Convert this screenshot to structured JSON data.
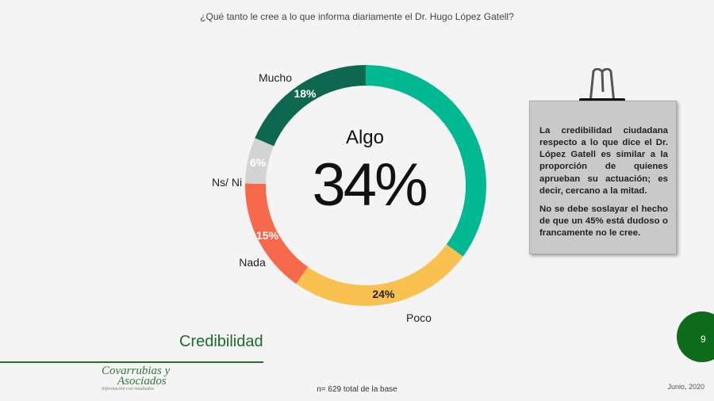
{
  "question": "¿Qué tanto le cree a lo que informa diariamente el Dr. Hugo López Gatell?",
  "chart_data": {
    "type": "pie",
    "categories": [
      "Algo",
      "Poco",
      "Nada",
      "Ns/ Ni",
      "Mucho"
    ],
    "values": [
      34,
      24,
      15,
      6,
      18
    ],
    "value_labels": [
      "34%",
      "24%",
      "15%",
      "6%",
      "18%"
    ],
    "colors": [
      "#00b891",
      "#f9c150",
      "#f6694a",
      "#d3d3d3",
      "#0e6850"
    ],
    "center_label": "Algo",
    "center_value": "34%"
  },
  "note": {
    "paragraph1": "La credibilidad ciudadana respecto a lo que dice el Dr. López Gatell es similar a la proporción de quienes aprueban su actuación; es decir, cercano a la mitad.",
    "paragraph2": "No se debe soslayar el hecho de que un 45% está dudoso o francamente no le cree."
  },
  "section_title": "Credibilidad",
  "logo": {
    "line1": "Covarrubias y",
    "line2": "Asociados",
    "tagline": "Información con resultados"
  },
  "sample_note": "n= 629 total de la base",
  "date": "Junio, 2020",
  "page_number": "9"
}
